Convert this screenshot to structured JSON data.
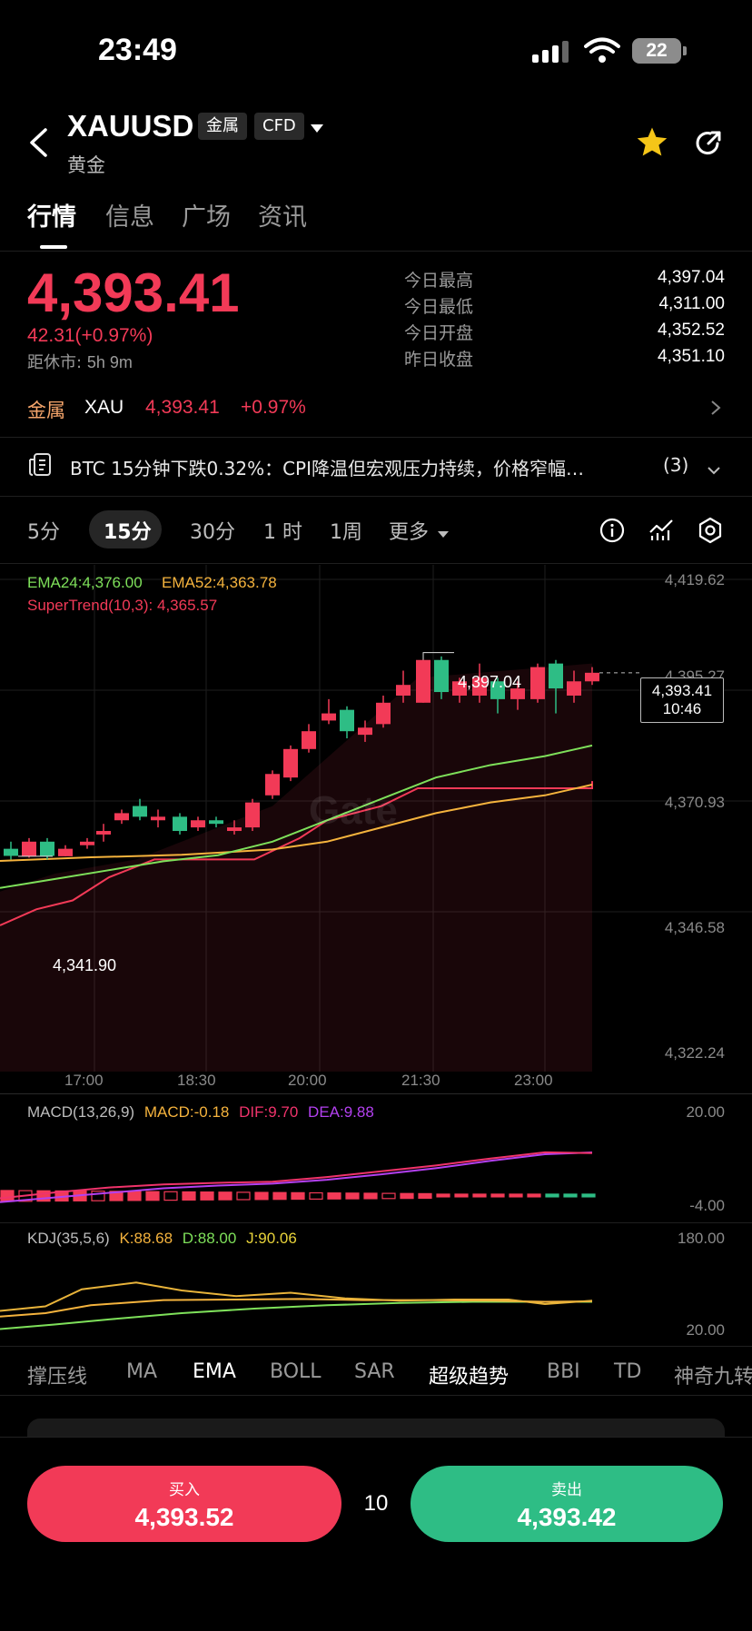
{
  "status_bar": {
    "time": "23:49",
    "battery": "22"
  },
  "header": {
    "symbol": "XAUUSD",
    "tag1": "金属",
    "tag2": "CFD",
    "subtitle": "黄金"
  },
  "tabs": [
    "行情",
    "信息",
    "广场",
    "资讯"
  ],
  "quote": {
    "price": "4,393.41",
    "change": "42.31(+0.97%)",
    "close_label": "距休市:",
    "close_time": "5h 9m"
  },
  "stats": [
    {
      "label": "今日最高",
      "value": "4,397.04"
    },
    {
      "label": "今日最低",
      "value": "4,311.00"
    },
    {
      "label": "今日开盘",
      "value": "4,352.52"
    },
    {
      "label": "昨日收盘",
      "value": "4,351.10"
    }
  ],
  "related": {
    "category": "金属",
    "code": "XAU",
    "price": "4,393.41",
    "change": "+0.97%"
  },
  "news": {
    "text": "BTC 15分钟下跌0.32%：CPI降温但宏观压力持续，价格窄幅…",
    "count": "(3)"
  },
  "timeframes": [
    "5分",
    "15分",
    "30分",
    "1 时",
    "1周",
    "更多"
  ],
  "active_timeframe": "15分",
  "chart_legend": {
    "ema24": "EMA24:4,376.00",
    "ema52": "EMA52:4,363.78",
    "supertrend": "SuperTrend(10,3): 4,365.57"
  },
  "price_axis": [
    "4,419.62",
    "4,395.27",
    "4,370.93",
    "4,346.58",
    "4,322.24"
  ],
  "high_marker": "4,397.04",
  "low_marker": "4,341.90",
  "current_tag": {
    "price": "4,393.41",
    "countdown": "10:46"
  },
  "watermark": "Gate",
  "time_axis": [
    "17:00",
    "18:30",
    "20:00",
    "21:30",
    "23:00"
  ],
  "macd": {
    "label": "MACD(13,26,9)",
    "macd": "MACD:-0.18",
    "dif": "DIF:9.70",
    "dea": "DEA:9.88",
    "axis_top": "20.00",
    "axis_bottom": "-4.00"
  },
  "kdj": {
    "label": "KDJ(35,5,6)",
    "k": "K:88.68",
    "d": "D:88.00",
    "j": "J:90.06",
    "axis_top": "180.00",
    "axis_bottom": "20.00"
  },
  "indicators": [
    "撑压线",
    "MA",
    "EMA",
    "BOLL",
    "SAR",
    "超级趋势",
    "BBI",
    "TD",
    "神奇九转"
  ],
  "trade": {
    "buy_label": "买入",
    "buy_price": "4,393.52",
    "spread": "10",
    "sell_label": "卖出",
    "sell_price": "4,393.42"
  },
  "colors": {
    "up": "#f23a57",
    "down": "#2ebd85",
    "ema24": "#7ee05a",
    "ema52": "#f5b33d",
    "supertrend": "#f23a57",
    "dif": "#f0336b",
    "dea": "#b340f0"
  }
}
